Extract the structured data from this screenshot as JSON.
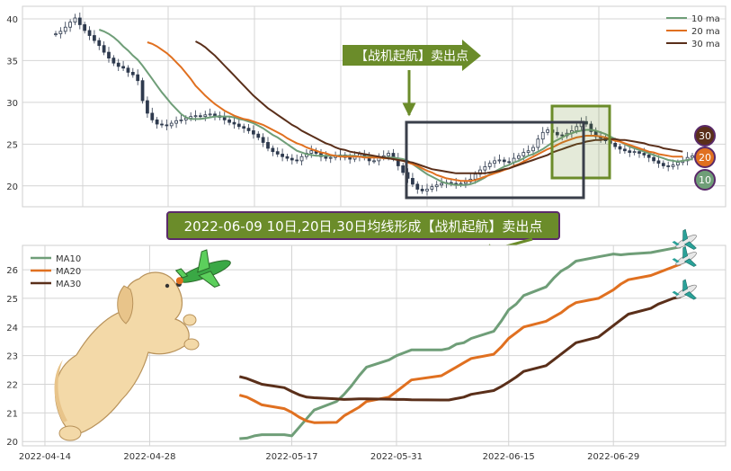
{
  "colors": {
    "ma10": "#6f9e78",
    "ma20": "#e07020",
    "ma30": "#5a2f1a",
    "candle": "#2e3a4e",
    "grid": "#d4d4d4",
    "frame": "#cfcfcf",
    "box_dark": "#3a3f4a",
    "box_green": "#6b8c2a",
    "banner_bg": "#6b8c2a",
    "banner_border": "#5a2a6a"
  },
  "annotations": {
    "signal_label": "【战机起航】卖出点",
    "banner_text": "2022-06-09 10日,20日,30日均线形成【战机起航】卖出点",
    "badge_30": "30",
    "badge_20": "20",
    "badge_10": "10"
  },
  "decorations": [
    "dog-illustration",
    "toy-airplane-icon",
    "airplane-icon",
    "airplane-icon",
    "airplane-icon"
  ],
  "chart_data": [
    {
      "type": "candlestick",
      "xlabel": "",
      "ylabel": "",
      "ylim": [
        17.5,
        41.5
      ],
      "yticks": [
        20,
        25,
        30,
        35,
        40
      ],
      "grid": true,
      "legend_position": "top-right",
      "legend": [
        "10 ma",
        "20 ma",
        "30 ma"
      ],
      "close": [
        38.2,
        38.5,
        39.0,
        39.6,
        40.1,
        39.3,
        38.6,
        38.0,
        37.4,
        36.8,
        36.0,
        35.3,
        34.7,
        34.3,
        34.1,
        33.6,
        33.3,
        32.6,
        30.2,
        28.7,
        27.9,
        27.4,
        27.3,
        27.2,
        27.5,
        27.8,
        27.9,
        28.1,
        28.3,
        28.4,
        28.3,
        28.5,
        28.6,
        28.4,
        28.2,
        27.9,
        27.6,
        27.4,
        27.1,
        26.9,
        26.6,
        26.2,
        25.8,
        25.2,
        24.5,
        24.1,
        23.8,
        23.5,
        23.3,
        23.1,
        23.0,
        23.5,
        23.9,
        24.2,
        23.9,
        23.5,
        23.3,
        23.4,
        23.6,
        23.7,
        23.4,
        23.2,
        23.5,
        23.8,
        23.4,
        23.0,
        23.0,
        23.4,
        23.6,
        23.9,
        23.3,
        22.4,
        21.6,
        20.9,
        20.2,
        19.6,
        19.4,
        19.6,
        19.9,
        20.1,
        20.3,
        20.4,
        20.3,
        20.2,
        20.3,
        20.5,
        20.8,
        21.4,
        21.9,
        22.3,
        22.7,
        23.0,
        23.1,
        22.9,
        22.8,
        23.3,
        23.6,
        24.0,
        24.2,
        24.6,
        25.6,
        26.4,
        26.7,
        26.4,
        26.1,
        26.0,
        26.3,
        26.6,
        27.1,
        27.7,
        27.4,
        26.5,
        25.9,
        25.7,
        25.4,
        25.1,
        24.7,
        24.4,
        24.2,
        24.0,
        24.1,
        23.9,
        23.7,
        23.4,
        23.0,
        22.7,
        22.4,
        22.3,
        22.5,
        22.8,
        23.0,
        23.4,
        23.6
      ],
      "series": [
        {
          "name": "10 ma",
          "values": [
            null,
            null,
            null,
            null,
            null,
            null,
            null,
            null,
            null,
            38.7,
            38.5,
            38.2,
            37.8,
            37.3,
            36.7,
            36.2,
            35.6,
            35.1,
            34.4,
            33.6,
            32.8,
            32.0,
            31.2,
            30.5,
            29.8,
            29.2,
            28.6,
            28.2,
            28.0,
            28.0,
            28.0,
            28.1,
            28.2,
            28.3,
            28.3,
            28.3,
            28.3,
            28.2,
            28.0,
            27.9,
            27.7,
            27.5,
            27.2,
            26.9,
            26.5,
            26.1,
            25.8,
            25.4,
            25.0,
            24.6,
            24.2,
            24.0,
            23.8,
            23.7,
            23.6,
            23.6,
            23.6,
            23.6,
            23.6,
            23.6,
            23.6,
            23.6,
            23.6,
            23.5,
            23.5,
            23.5,
            23.5,
            23.4,
            23.4,
            23.4,
            23.4,
            23.3,
            23.2,
            23.0,
            22.6,
            22.2,
            21.8,
            21.4,
            21.1,
            20.8,
            20.5,
            20.3,
            20.2,
            20.1,
            20.1,
            20.1,
            20.2,
            20.4,
            20.7,
            21.0,
            21.4,
            21.7,
            22.0,
            22.3,
            22.5,
            22.8,
            23.0,
            23.3,
            23.6,
            23.8,
            24.1,
            24.4,
            24.8,
            25.2,
            25.5,
            25.8,
            26.1,
            26.3,
            26.5,
            26.6,
            26.7,
            26.7,
            26.6,
            26.4,
            26.2,
            25.9,
            25.6,
            25.3,
            25.0,
            24.7,
            24.5,
            24.3,
            24.1,
            23.9,
            23.7,
            23.5,
            23.3,
            23.1,
            23.0,
            22.9,
            23.0,
            23.1,
            23.2
          ]
        },
        {
          "name": "20 ma",
          "values": [
            null,
            null,
            null,
            null,
            null,
            null,
            null,
            null,
            null,
            null,
            null,
            null,
            null,
            null,
            null,
            null,
            null,
            null,
            null,
            37.2,
            37.0,
            36.7,
            36.3,
            35.9,
            35.4,
            34.8,
            34.2,
            33.5,
            32.8,
            32.0,
            31.4,
            30.8,
            30.3,
            29.8,
            29.4,
            29.0,
            28.7,
            28.4,
            28.2,
            28.0,
            27.9,
            27.7,
            27.5,
            27.3,
            27.0,
            26.7,
            26.4,
            26.1,
            25.7,
            25.4,
            25.1,
            24.9,
            24.6,
            24.4,
            24.2,
            24.0,
            23.9,
            23.7,
            23.6,
            23.5,
            23.5,
            23.5,
            23.5,
            23.5,
            23.4,
            23.4,
            23.4,
            23.4,
            23.3,
            23.3,
            23.2,
            23.1,
            23.0,
            22.8,
            22.6,
            22.4,
            22.1,
            21.8,
            21.6,
            21.3,
            21.1,
            20.9,
            20.8,
            20.7,
            20.6,
            20.6,
            20.6,
            20.7,
            20.9,
            21.1,
            21.3,
            21.5,
            21.7,
            21.9,
            22.1,
            22.4,
            22.6,
            22.9,
            23.2,
            23.5,
            23.8,
            24.1,
            24.4,
            24.6,
            24.9,
            25.2,
            25.4,
            25.6,
            25.8,
            25.9,
            26.0,
            26.0,
            26.0,
            25.9,
            25.8,
            25.6,
            25.4,
            25.3,
            25.1,
            24.9,
            24.7,
            24.5,
            24.3,
            24.1,
            24.0,
            23.8,
            23.7,
            23.6,
            23.5,
            23.5,
            23.5
          ]
        },
        {
          "name": "30 ma",
          "values": [
            null,
            null,
            null,
            null,
            null,
            null,
            null,
            null,
            null,
            null,
            null,
            null,
            null,
            null,
            null,
            null,
            null,
            null,
            null,
            null,
            null,
            null,
            null,
            null,
            null,
            null,
            null,
            null,
            null,
            37.3,
            37.0,
            36.6,
            36.1,
            35.6,
            35.0,
            34.4,
            33.8,
            33.2,
            32.6,
            32.0,
            31.4,
            30.8,
            30.3,
            29.8,
            29.3,
            28.9,
            28.5,
            28.1,
            27.7,
            27.3,
            27.0,
            26.6,
            26.3,
            26.0,
            25.7,
            25.4,
            25.1,
            24.9,
            24.6,
            24.4,
            24.3,
            24.1,
            24.0,
            23.9,
            23.8,
            23.7,
            23.6,
            23.5,
            23.4,
            23.3,
            23.2,
            23.1,
            23.0,
            22.9,
            22.8,
            22.6,
            22.4,
            22.2,
            22.0,
            21.9,
            21.8,
            21.7,
            21.6,
            21.5,
            21.5,
            21.5,
            21.5,
            21.5,
            21.5,
            21.5,
            21.6,
            21.7,
            21.8,
            22.0,
            22.1,
            22.3,
            22.5,
            22.7,
            22.9,
            23.1,
            23.3,
            23.5,
            23.7,
            24.0,
            24.2,
            24.4,
            24.6,
            24.8,
            25.0,
            25.1,
            25.3,
            25.4,
            25.5,
            25.5,
            25.6,
            25.6,
            25.6,
            25.5,
            25.5,
            25.4,
            25.3,
            25.2,
            25.1,
            24.9,
            24.8,
            24.7,
            24.5,
            24.4,
            24.3,
            24.2,
            24.1
          ]
        }
      ]
    },
    {
      "type": "line",
      "xlabel": "",
      "ylabel": "",
      "xlim": [
        "2022-04-11",
        "2022-07-14"
      ],
      "ylim": [
        19.85,
        26.85
      ],
      "yticks": [
        20,
        21,
        22,
        23,
        24,
        25,
        26
      ],
      "x_ticks": [
        "2022-04-14",
        "2022-04-28",
        "2022-05-17",
        "2022-05-31",
        "2022-06-15",
        "2022-06-29"
      ],
      "grid": true,
      "legend_position": "top-left",
      "legend": [
        "MA10",
        "MA20",
        "MA30"
      ],
      "x": [
        "2022-05-10",
        "2022-05-11",
        "2022-05-12",
        "2022-05-13",
        "2022-05-16",
        "2022-05-17",
        "2022-05-18",
        "2022-05-19",
        "2022-05-20",
        "2022-05-23",
        "2022-05-24",
        "2022-05-25",
        "2022-05-26",
        "2022-05-27",
        "2022-05-30",
        "2022-05-31",
        "2022-06-01",
        "2022-06-02",
        "2022-06-06",
        "2022-06-07",
        "2022-06-08",
        "2022-06-09",
        "2022-06-10",
        "2022-06-13",
        "2022-06-14",
        "2022-06-15",
        "2022-06-16",
        "2022-06-17",
        "2022-06-20",
        "2022-06-21",
        "2022-06-22",
        "2022-06-23",
        "2022-06-24",
        "2022-06-27",
        "2022-06-28",
        "2022-06-29",
        "2022-06-30",
        "2022-07-01",
        "2022-07-04",
        "2022-07-05",
        "2022-07-06",
        "2022-07-07",
        "2022-07-08"
      ],
      "series": [
        {
          "name": "MA10",
          "values": [
            20.1,
            20.12,
            20.2,
            20.24,
            20.24,
            20.2,
            20.5,
            20.8,
            21.1,
            21.4,
            21.65,
            21.95,
            22.3,
            22.6,
            22.85,
            23.0,
            23.1,
            23.2,
            23.2,
            23.25,
            23.4,
            23.45,
            23.6,
            23.85,
            24.2,
            24.6,
            24.8,
            25.1,
            25.4,
            25.7,
            25.95,
            26.1,
            26.3,
            26.45,
            26.5,
            26.55,
            26.52,
            26.55,
            26.6,
            26.65,
            26.7,
            26.75,
            26.8
          ]
        },
        {
          "name": "MA20",
          "values": [
            21.62,
            21.55,
            21.42,
            21.28,
            21.15,
            21.02,
            20.85,
            20.72,
            20.66,
            20.67,
            20.9,
            21.05,
            21.2,
            21.4,
            21.55,
            21.75,
            21.95,
            22.15,
            22.3,
            22.45,
            22.6,
            22.75,
            22.9,
            23.05,
            23.3,
            23.6,
            23.8,
            24.0,
            24.2,
            24.35,
            24.5,
            24.7,
            24.85,
            25.0,
            25.15,
            25.3,
            25.5,
            25.65,
            25.8,
            25.9,
            26.0,
            26.1,
            26.2
          ]
        },
        {
          "name": "MA30",
          "values": [
            22.27,
            22.2,
            22.1,
            22.0,
            21.88,
            21.75,
            21.63,
            21.55,
            21.53,
            21.49,
            21.47,
            21.48,
            21.49,
            21.49,
            21.48,
            21.47,
            21.47,
            21.46,
            21.45,
            21.45,
            21.5,
            21.55,
            21.65,
            21.78,
            21.92,
            22.08,
            22.25,
            22.45,
            22.65,
            22.85,
            23.05,
            23.25,
            23.45,
            23.65,
            23.85,
            24.05,
            24.25,
            24.45,
            24.65,
            24.8,
            24.9,
            25.0,
            25.05
          ]
        }
      ]
    }
  ]
}
